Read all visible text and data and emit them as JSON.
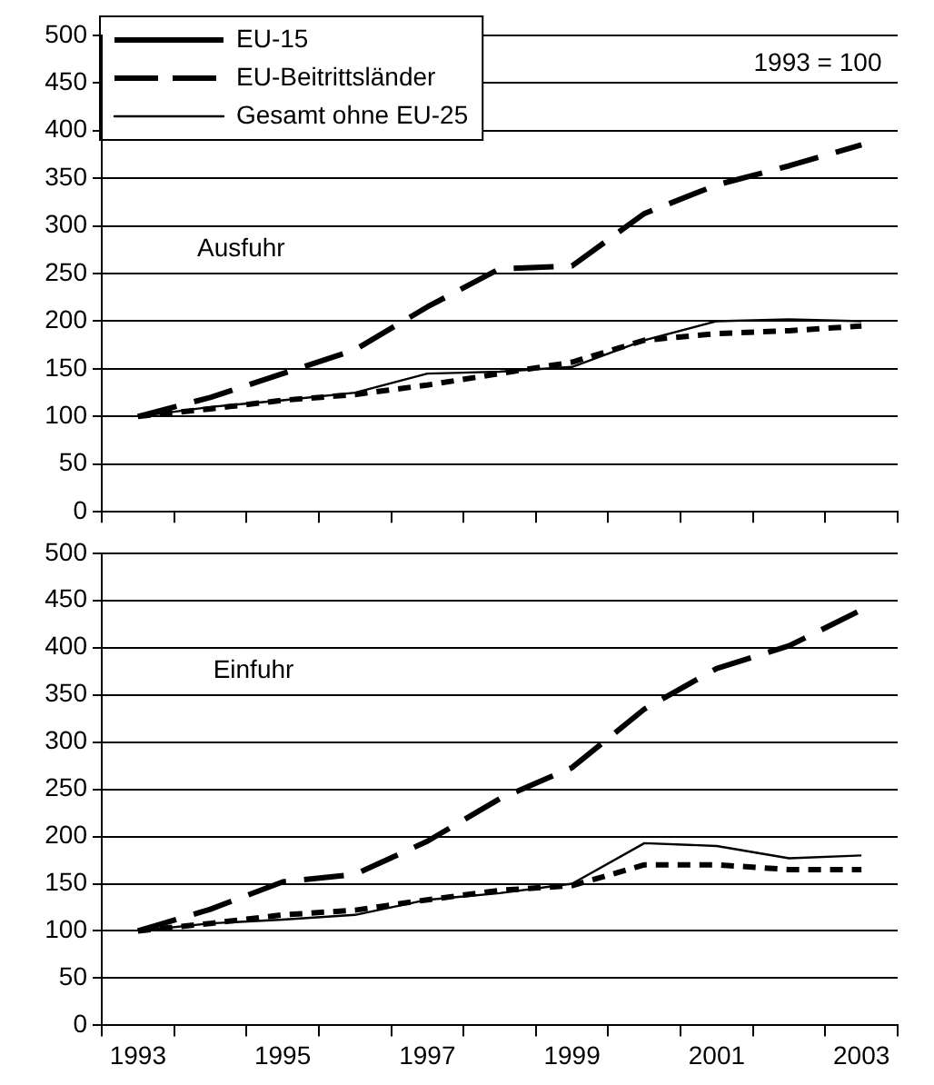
{
  "chart_data": [
    {
      "type": "line",
      "annotations": [
        "1993 = 100",
        "Ausfuhr"
      ],
      "categories": [
        "1993",
        null,
        "1995",
        null,
        "1997",
        null,
        "1999",
        null,
        "2001",
        null,
        "2003"
      ],
      "series": [
        {
          "name": "EU-15",
          "color": "#000000",
          "line_style": "dotted",
          "values": [
            100,
            108,
            117,
            123,
            133,
            145,
            157,
            180,
            187,
            190,
            195
          ]
        },
        {
          "name": "EU-Beitrittsländer",
          "color": "#000000",
          "line_style": "dashed",
          "values": [
            100,
            120,
            145,
            170,
            215,
            255,
            258,
            313,
            343,
            363,
            385
          ]
        },
        {
          "name": "Gesamt ohne EU-25",
          "color": "#000000",
          "line_style": "solid",
          "values": [
            100,
            110,
            117,
            125,
            145,
            147,
            152,
            180,
            200,
            202,
            200
          ]
        }
      ],
      "ylim": [
        0,
        500
      ],
      "yticks": [
        0,
        50,
        100,
        150,
        200,
        250,
        300,
        350,
        400,
        450,
        500
      ],
      "grid": "y",
      "legend": "top left",
      "tick_labels": "y",
      "marker": "none"
    },
    {
      "type": "line",
      "annotations": [
        "Einfuhr"
      ],
      "categories": [
        "1993",
        null,
        "1995",
        null,
        "1997",
        null,
        "1999",
        null,
        "2001",
        null,
        "2003"
      ],
      "series": [
        {
          "color": "#000000",
          "line_style": "dotted",
          "values": [
            100,
            108,
            117,
            122,
            133,
            143,
            148,
            170,
            170,
            165,
            165
          ]
        },
        {
          "color": "#000000",
          "line_style": "dashed",
          "values": [
            100,
            123,
            152,
            160,
            195,
            240,
            273,
            335,
            378,
            402,
            440
          ]
        },
        {
          "color": "#000000",
          "line_style": "solid",
          "values": [
            100,
            108,
            112,
            117,
            133,
            140,
            150,
            193,
            190,
            177,
            180
          ]
        }
      ],
      "ylim": [
        0,
        500
      ],
      "yticks": [
        0,
        50,
        100,
        150,
        200,
        250,
        300,
        350,
        400,
        450,
        500
      ],
      "grid": "y",
      "legend": false,
      "marker": "none"
    }
  ]
}
